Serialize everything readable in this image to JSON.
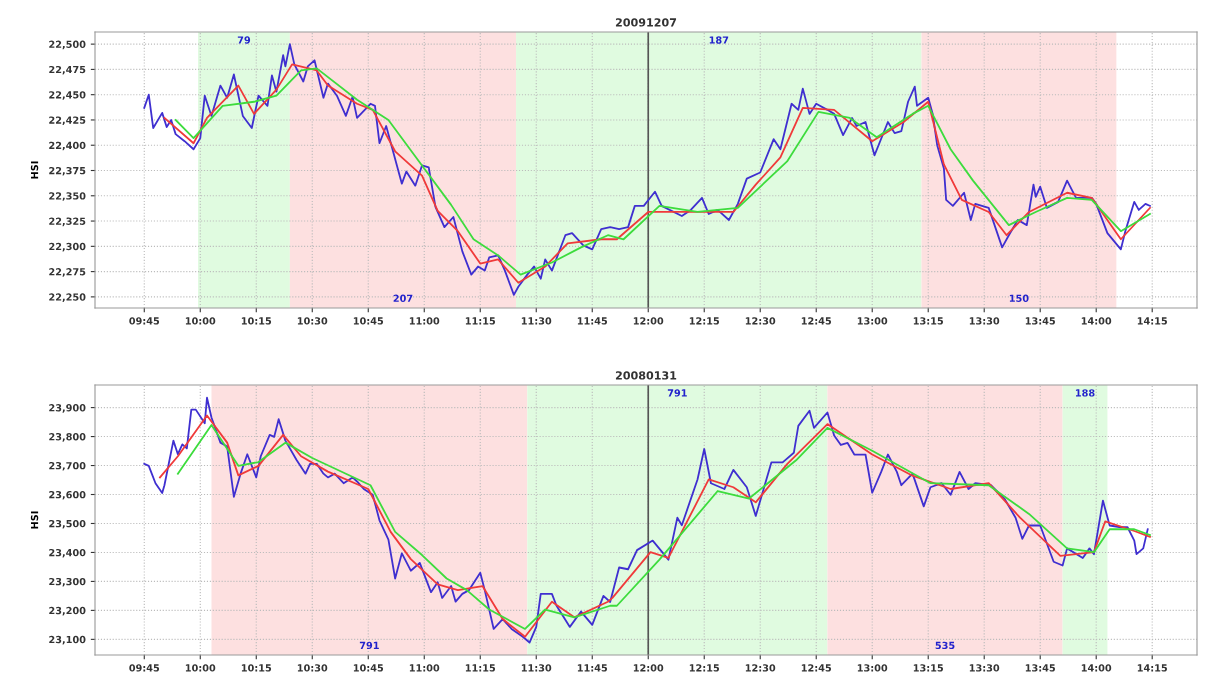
{
  "chart_data": [
    {
      "type": "line",
      "title": "20091207",
      "ylabel": "HSI",
      "grid": true,
      "xlim": [
        9.53,
        14.45
      ],
      "ylim": [
        22239,
        22512
      ],
      "xticks": [
        {
          "value": 9.75,
          "label": "09:45"
        },
        {
          "value": 10,
          "label": "10:00"
        },
        {
          "value": 10.25,
          "label": "10:15"
        },
        {
          "value": 10.5,
          "label": "10:30"
        },
        {
          "value": 10.75,
          "label": "10:45"
        },
        {
          "value": 11,
          "label": "11:00"
        },
        {
          "value": 11.25,
          "label": "11:15"
        },
        {
          "value": 11.5,
          "label": "11:30"
        },
        {
          "value": 11.75,
          "label": "11:45"
        },
        {
          "value": 12,
          "label": "12:00"
        },
        {
          "value": 12.25,
          "label": "12:15"
        },
        {
          "value": 12.5,
          "label": "12:30"
        },
        {
          "value": 12.75,
          "label": "12:45"
        },
        {
          "value": 13,
          "label": "13:00"
        },
        {
          "value": 13.25,
          "label": "13:15"
        },
        {
          "value": 13.5,
          "label": "13:30"
        },
        {
          "value": 13.75,
          "label": "13:45"
        },
        {
          "value": 14,
          "label": "14:00"
        },
        {
          "value": 14.25,
          "label": "14:15"
        }
      ],
      "yticks": [
        {
          "value": 22250,
          "label": "22,250"
        },
        {
          "value": 22275,
          "label": "22,275"
        },
        {
          "value": 22300,
          "label": "22,300"
        },
        {
          "value": 22325,
          "label": "22,325"
        },
        {
          "value": 22350,
          "label": "22,350"
        },
        {
          "value": 22375,
          "label": "22,375"
        },
        {
          "value": 22400,
          "label": "22,400"
        },
        {
          "value": 22425,
          "label": "22,425"
        },
        {
          "value": 22450,
          "label": "22,450"
        },
        {
          "value": 22475,
          "label": "22,475"
        },
        {
          "value": 22500,
          "label": "22,500"
        }
      ],
      "bands": [
        {
          "axis": "x",
          "from": 9.99,
          "to": 10.4,
          "color": "#e0fbe0",
          "label": "79"
        },
        {
          "axis": "x",
          "from": 10.4,
          "to": 11.41,
          "color": "#fde0e0",
          "label": "207"
        },
        {
          "axis": "x",
          "from": 11.41,
          "to": 13.22,
          "color": "#e0fbe0",
          "label": "187"
        },
        {
          "axis": "x",
          "from": 13.22,
          "to": 14.09,
          "color": "#fde0e0",
          "label": "150"
        }
      ],
      "ref_lines": [
        {
          "axis": "x",
          "value": 12,
          "color": "#555555"
        }
      ],
      "series": [
        {
          "color": "#3f2fd0",
          "x": [
            9.75,
            9.77,
            9.79,
            9.83,
            9.85,
            9.87,
            9.89,
            9.93,
            9.97,
            10.0,
            10.02,
            10.05,
            10.09,
            10.12,
            10.15,
            10.19,
            10.23,
            10.26,
            10.3,
            10.32,
            10.34,
            10.37,
            10.38,
            10.4,
            10.42,
            10.46,
            10.48,
            10.51,
            10.55,
            10.57,
            10.61,
            10.65,
            10.68,
            10.7,
            10.76,
            10.78,
            10.8,
            10.83,
            10.9,
            10.92,
            10.96,
            10.99,
            11.02,
            11.05,
            11.09,
            11.13,
            11.17,
            11.21,
            11.24,
            11.27,
            11.29,
            11.33,
            11.36,
            11.4,
            11.42,
            11.46,
            11.49,
            11.52,
            11.54,
            11.57,
            11.63,
            11.66,
            11.71,
            11.75,
            11.79,
            11.83,
            11.87,
            11.91,
            11.94,
            11.98,
            12.03,
            12.06,
            12.15,
            12.19,
            12.24,
            12.27,
            12.31,
            12.36,
            12.4,
            12.44,
            12.5,
            12.56,
            12.59,
            12.64,
            12.67,
            12.69,
            12.72,
            12.75,
            12.8,
            12.83,
            12.87,
            12.91,
            12.93,
            12.97,
            13.01,
            13.07,
            13.1,
            13.13,
            13.16,
            13.19,
            13.2,
            13.25,
            13.27,
            13.29,
            13.32,
            13.33,
            13.36,
            13.41,
            13.44,
            13.46,
            13.52,
            13.58,
            13.61,
            13.65,
            13.69,
            13.72,
            13.73,
            13.75,
            13.78,
            13.83,
            13.87,
            13.91,
            13.98,
            14.0,
            14.05,
            14.11,
            14.13,
            14.17,
            14.19,
            14.22,
            14.24
          ],
          "values": [
            22437,
            22450,
            22417,
            22432,
            22418,
            22425,
            22411,
            22404,
            22396,
            22407,
            22449,
            22429,
            22459,
            22447,
            22470,
            22429,
            22417,
            22449,
            22439,
            22469,
            22453,
            22489,
            22478,
            22500,
            22480,
            22463,
            22478,
            22484,
            22447,
            22461,
            22449,
            22429,
            22448,
            22427,
            22441,
            22439,
            22402,
            22419,
            22362,
            22374,
            22360,
            22380,
            22378,
            22339,
            22319,
            22329,
            22295,
            22272,
            22280,
            22276,
            22289,
            22291,
            22276,
            22252,
            22260,
            22272,
            22280,
            22268,
            22287,
            22276,
            22311,
            22313,
            22301,
            22297,
            22317,
            22319,
            22317,
            22319,
            22340,
            22340,
            22354,
            22340,
            22330,
            22336,
            22348,
            22332,
            22336,
            22326,
            22342,
            22367,
            22373,
            22406,
            22396,
            22441,
            22435,
            22456,
            22431,
            22441,
            22435,
            22431,
            22410,
            22427,
            22419,
            22423,
            22390,
            22423,
            22412,
            22414,
            22443,
            22458,
            22439,
            22447,
            22431,
            22400,
            22377,
            22346,
            22340,
            22353,
            22326,
            22342,
            22338,
            22299,
            22311,
            22326,
            22321,
            22361,
            22349,
            22359,
            22338,
            22344,
            22365,
            22348,
            22348,
            22342,
            22313,
            22297,
            22315,
            22344,
            22336,
            22342,
            22340
          ]
        },
        {
          "color": "#f03a3a",
          "x": [
            9.84,
            9.97,
            10.03,
            10.17,
            10.24,
            10.34,
            10.41,
            10.52,
            10.57,
            10.7,
            10.77,
            10.87,
            10.99,
            11.06,
            11.15,
            11.25,
            11.33,
            11.42,
            11.54,
            11.64,
            11.79,
            11.86,
            12.0,
            12.14,
            12.38,
            12.48,
            12.59,
            12.69,
            12.83,
            13.0,
            13.14,
            13.25,
            13.32,
            13.4,
            13.52,
            13.6,
            13.7,
            13.87,
            13.98,
            14.11,
            14.24
          ],
          "values": [
            22427,
            22402,
            22427,
            22459,
            22431,
            22455,
            22480,
            22474,
            22459,
            22441,
            22435,
            22394,
            22370,
            22335,
            22315,
            22283,
            22287,
            22264,
            22280,
            22303,
            22307,
            22307,
            22334,
            22334,
            22334,
            22361,
            22388,
            22437,
            22435,
            22404,
            22423,
            22443,
            22381,
            22346,
            22334,
            22311,
            22334,
            22353,
            22348,
            22307,
            22338
          ]
        },
        {
          "color": "#3ddc3d",
          "x": [
            9.89,
            9.97,
            10.1,
            10.24,
            10.34,
            10.45,
            10.52,
            10.7,
            10.84,
            10.99,
            11.12,
            11.22,
            11.33,
            11.43,
            11.57,
            11.7,
            11.82,
            11.89,
            12.05,
            12.22,
            12.4,
            12.62,
            12.76,
            12.9,
            13.02,
            13.18,
            13.25,
            13.35,
            13.45,
            13.61,
            13.73,
            13.87,
            13.98,
            14.11,
            14.24
          ],
          "values": [
            22425,
            22407,
            22439,
            22443,
            22449,
            22474,
            22476,
            22445,
            22425,
            22380,
            22341,
            22307,
            22291,
            22272,
            22284,
            22299,
            22311,
            22307,
            22340,
            22334,
            22338,
            22384,
            22433,
            22427,
            22408,
            22431,
            22439,
            22396,
            22365,
            22321,
            22334,
            22348,
            22346,
            22315,
            22332
          ]
        }
      ]
    },
    {
      "type": "line",
      "title": "20080131",
      "ylabel": "HSI",
      "grid": true,
      "xlim": [
        9.53,
        14.45
      ],
      "ylim": [
        23046,
        23978
      ],
      "xticks": [
        {
          "value": 9.75,
          "label": "09:45"
        },
        {
          "value": 10,
          "label": "10:00"
        },
        {
          "value": 10.25,
          "label": "10:15"
        },
        {
          "value": 10.5,
          "label": "10:30"
        },
        {
          "value": 10.75,
          "label": "10:45"
        },
        {
          "value": 11,
          "label": "11:00"
        },
        {
          "value": 11.25,
          "label": "11:15"
        },
        {
          "value": 11.5,
          "label": "11:30"
        },
        {
          "value": 11.75,
          "label": "11:45"
        },
        {
          "value": 12,
          "label": "12:00"
        },
        {
          "value": 12.25,
          "label": "12:15"
        },
        {
          "value": 12.5,
          "label": "12:30"
        },
        {
          "value": 12.75,
          "label": "12:45"
        },
        {
          "value": 13,
          "label": "13:00"
        },
        {
          "value": 13.25,
          "label": "13:15"
        },
        {
          "value": 13.5,
          "label": "13:30"
        },
        {
          "value": 13.75,
          "label": "13:45"
        },
        {
          "value": 14,
          "label": "14:00"
        },
        {
          "value": 14.25,
          "label": "14:15"
        }
      ],
      "yticks": [
        {
          "value": 23100,
          "label": "23,100"
        },
        {
          "value": 23200,
          "label": "23,200"
        },
        {
          "value": 23300,
          "label": "23,300"
        },
        {
          "value": 23400,
          "label": "23,400"
        },
        {
          "value": 23500,
          "label": "23,500"
        },
        {
          "value": 23600,
          "label": "23,600"
        },
        {
          "value": 23700,
          "label": "23,700"
        },
        {
          "value": 23800,
          "label": "23,800"
        },
        {
          "value": 23900,
          "label": "23,900"
        }
      ],
      "bands": [
        {
          "axis": "x",
          "from": 10.05,
          "to": 11.46,
          "color": "#fde0e0",
          "label": "791"
        },
        {
          "axis": "x",
          "from": 11.46,
          "to": 12.8,
          "color": "#e0fbe0",
          "label": "791"
        },
        {
          "axis": "x",
          "from": 12.8,
          "to": 13.85,
          "color": "#fde0e0",
          "label": "535"
        },
        {
          "axis": "x",
          "from": 13.85,
          "to": 14.05,
          "color": "#e0fbe0",
          "label": "188"
        }
      ],
      "ref_lines": [
        {
          "axis": "x",
          "value": 12,
          "color": "#555555"
        }
      ],
      "series": [
        {
          "color": "#3f2fd0",
          "x": [
            9.75,
            9.77,
            9.8,
            9.83,
            9.84,
            9.88,
            9.9,
            9.92,
            9.94,
            9.96,
            9.98,
            10.02,
            10.03,
            10.05,
            10.09,
            10.12,
            10.15,
            10.18,
            10.21,
            10.25,
            10.27,
            10.31,
            10.33,
            10.35,
            10.38,
            10.43,
            10.47,
            10.49,
            10.52,
            10.55,
            10.57,
            10.6,
            10.64,
            10.68,
            10.7,
            10.73,
            10.77,
            10.8,
            10.84,
            10.87,
            10.9,
            10.94,
            10.98,
            11.03,
            11.06,
            11.08,
            11.12,
            11.14,
            11.17,
            11.2,
            11.25,
            11.27,
            11.31,
            11.35,
            11.39,
            11.44,
            11.47,
            11.5,
            11.52,
            11.57,
            11.59,
            11.65,
            11.7,
            11.75,
            11.8,
            11.83,
            11.87,
            11.91,
            11.95,
            12.02,
            12.09,
            12.13,
            12.15,
            12.22,
            12.25,
            12.28,
            12.34,
            12.38,
            12.44,
            12.48,
            12.55,
            12.6,
            12.65,
            12.67,
            12.72,
            12.74,
            12.8,
            12.83,
            12.86,
            12.89,
            12.92,
            12.97,
            13.0,
            13.04,
            13.07,
            13.11,
            13.13,
            13.18,
            13.23,
            13.26,
            13.31,
            13.35,
            13.39,
            13.43,
            13.46,
            13.53,
            13.59,
            13.64,
            13.67,
            13.7,
            13.75,
            13.81,
            13.85,
            13.87,
            13.94,
            13.97,
            13.99,
            14.03,
            14.06,
            14.11,
            14.14,
            14.17,
            14.18,
            14.21,
            14.23
          ],
          "values": [
            23706,
            23699,
            23639,
            23605,
            23632,
            23786,
            23739,
            23773,
            23759,
            23893,
            23893,
            23846,
            23934,
            23866,
            23779,
            23766,
            23592,
            23672,
            23739,
            23659,
            23732,
            23806,
            23799,
            23860,
            23786,
            23719,
            23672,
            23706,
            23706,
            23672,
            23659,
            23672,
            23639,
            23659,
            23645,
            23619,
            23599,
            23511,
            23444,
            23310,
            23397,
            23337,
            23364,
            23263,
            23297,
            23243,
            23284,
            23230,
            23257,
            23270,
            23330,
            23270,
            23136,
            23170,
            23136,
            23109,
            23089,
            23143,
            23257,
            23257,
            23217,
            23143,
            23196,
            23150,
            23250,
            23229,
            23348,
            23342,
            23408,
            23441,
            23375,
            23520,
            23494,
            23652,
            23757,
            23639,
            23619,
            23685,
            23625,
            23526,
            23711,
            23711,
            23744,
            23837,
            23889,
            23830,
            23883,
            23804,
            23771,
            23778,
            23738,
            23738,
            23606,
            23678,
            23738,
            23678,
            23632,
            23672,
            23559,
            23625,
            23639,
            23599,
            23678,
            23619,
            23639,
            23632,
            23586,
            23520,
            23447,
            23493,
            23493,
            23368,
            23355,
            23414,
            23381,
            23414,
            23394,
            23579,
            23493,
            23487,
            23487,
            23441,
            23394,
            23414,
            23480
          ]
        },
        {
          "color": "#f03a3a",
          "x": [
            9.82,
            9.9,
            10.03,
            10.12,
            10.17,
            10.26,
            10.37,
            10.45,
            10.57,
            10.75,
            10.85,
            10.94,
            11.06,
            11.15,
            11.26,
            11.35,
            11.45,
            11.57,
            11.67,
            11.82,
            11.84,
            12.01,
            12.09,
            12.27,
            12.38,
            12.48,
            12.62,
            12.8,
            13.0,
            13.18,
            13.35,
            13.52,
            13.66,
            13.84,
            13.99,
            14.04,
            14.17,
            14.24
          ],
          "values": [
            23659,
            23732,
            23873,
            23779,
            23666,
            23699,
            23806,
            23732,
            23679,
            23619,
            23471,
            23377,
            23290,
            23270,
            23284,
            23170,
            23109,
            23230,
            23176,
            23230,
            23243,
            23401,
            23381,
            23652,
            23625,
            23573,
            23705,
            23843,
            23738,
            23665,
            23619,
            23639,
            23520,
            23388,
            23401,
            23507,
            23474,
            23454
          ]
        },
        {
          "color": "#3ddc3d",
          "x": [
            9.9,
            10.05,
            10.17,
            10.26,
            10.38,
            10.5,
            10.76,
            10.87,
            10.99,
            11.1,
            11.19,
            11.29,
            11.45,
            11.54,
            11.67,
            11.83,
            11.86,
            12.05,
            12.31,
            12.45,
            12.66,
            12.8,
            13.0,
            13.26,
            13.52,
            13.7,
            13.87,
            13.99,
            14.06,
            14.17,
            14.24
          ],
          "values": [
            23672,
            23840,
            23699,
            23712,
            23779,
            23726,
            23632,
            23471,
            23391,
            23310,
            23270,
            23203,
            23136,
            23203,
            23176,
            23216,
            23216,
            23375,
            23612,
            23586,
            23718,
            23830,
            23751,
            23639,
            23632,
            23533,
            23414,
            23401,
            23480,
            23480,
            23460
          ]
        }
      ]
    }
  ]
}
